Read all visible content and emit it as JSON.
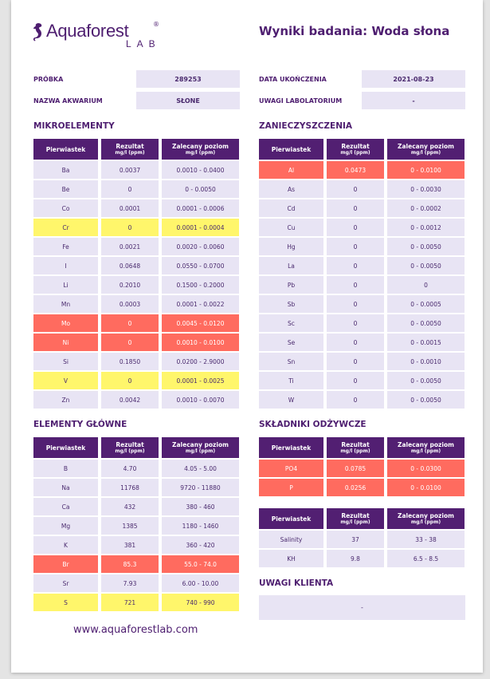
{
  "header": {
    "logo_text": "Aquaforest",
    "logo_sub": "LAB",
    "logo_reg": "®",
    "title": "Wyniki badania: Woda słona"
  },
  "info": {
    "sample_label": "PRÓBKA",
    "sample_value": "289253",
    "aquarium_label": "NAZWA AKWARIUM",
    "aquarium_value": "SŁONE",
    "date_label": "DATA UKOŃCZENIA",
    "date_value": "2021-08-23",
    "lab_notes_label": "UWAGI LABOLATORIUM",
    "lab_notes_value": "-"
  },
  "columns": {
    "element": "Pierwiastek",
    "result": "Rezultat",
    "recommended": "Zalecany poziom",
    "unit": "mg/l (ppm)"
  },
  "colors": {
    "header": "#521f72",
    "ok": "#e8e4f4",
    "warn": "#fff66b",
    "high": "#ff6b5f"
  },
  "tables": {
    "micro": {
      "title": "MIKROELEMENTY",
      "rows": [
        [
          "Ba",
          "0.0037",
          "0.0010 - 0.0400",
          "ok"
        ],
        [
          "Be",
          "0",
          "0 - 0.0050",
          "ok"
        ],
        [
          "Co",
          "0.0001",
          "0.0001 - 0.0006",
          "ok"
        ],
        [
          "Cr",
          "0",
          "0.0001 - 0.0004",
          "warn"
        ],
        [
          "Fe",
          "0.0021",
          "0.0020 - 0.0060",
          "ok"
        ],
        [
          "I",
          "0.0648",
          "0.0550 - 0.0700",
          "ok"
        ],
        [
          "Li",
          "0.2010",
          "0.1500 - 0.2000",
          "ok"
        ],
        [
          "Mn",
          "0.0003",
          "0.0001 - 0.0022",
          "ok"
        ],
        [
          "Mo",
          "0",
          "0.0045 - 0.0120",
          "high"
        ],
        [
          "Ni",
          "0",
          "0.0010 - 0.0100",
          "high"
        ],
        [
          "Si",
          "0.1850",
          "0.0200 - 2.9000",
          "ok"
        ],
        [
          "V",
          "0",
          "0.0001 - 0.0025",
          "warn"
        ],
        [
          "Zn",
          "0.0042",
          "0.0010 - 0.0070",
          "ok"
        ]
      ]
    },
    "pollutants": {
      "title": "ZANIECZYSZCZENIA",
      "rows": [
        [
          "Al",
          "0.0473",
          "0 - 0.0100",
          "high"
        ],
        [
          "As",
          "0",
          "0 - 0.0030",
          "ok"
        ],
        [
          "Cd",
          "0",
          "0 - 0.0002",
          "ok"
        ],
        [
          "Cu",
          "0",
          "0 - 0.0012",
          "ok"
        ],
        [
          "Hg",
          "0",
          "0 - 0.0050",
          "ok"
        ],
        [
          "La",
          "0",
          "0 - 0.0050",
          "ok"
        ],
        [
          "Pb",
          "0",
          "0",
          "ok"
        ],
        [
          "Sb",
          "0",
          "0 - 0.0005",
          "ok"
        ],
        [
          "Sc",
          "0",
          "0 - 0.0050",
          "ok"
        ],
        [
          "Se",
          "0",
          "0 - 0.0015",
          "ok"
        ],
        [
          "Sn",
          "0",
          "0 - 0.0010",
          "ok"
        ],
        [
          "Ti",
          "0",
          "0 - 0.0050",
          "ok"
        ],
        [
          "W",
          "0",
          "0 - 0.0050",
          "ok"
        ]
      ]
    },
    "main": {
      "title": "ELEMENTY GŁÓWNE",
      "rows": [
        [
          "B",
          "4.70",
          "4.05 - 5.00",
          "ok"
        ],
        [
          "Na",
          "11768",
          "9720 - 11880",
          "ok"
        ],
        [
          "Ca",
          "432",
          "380 - 460",
          "ok"
        ],
        [
          "Mg",
          "1385",
          "1180 - 1460",
          "ok"
        ],
        [
          "K",
          "381",
          "360 - 420",
          "ok"
        ],
        [
          "Br",
          "85.3",
          "55.0 - 74.0",
          "high"
        ],
        [
          "Sr",
          "7.93",
          "6.00 - 10.00",
          "ok"
        ],
        [
          "S",
          "721",
          "740 - 990",
          "warn"
        ]
      ]
    },
    "nutrients": {
      "title": "SKŁADNIKI ODŻYWCZE",
      "rows": [
        [
          "PO4",
          "0.0785",
          "0 - 0.0300",
          "high"
        ],
        [
          "P",
          "0.0256",
          "0 - 0.0100",
          "high"
        ]
      ]
    },
    "other": {
      "rows": [
        [
          "Salinity",
          "37",
          "33 - 38",
          "ok"
        ],
        [
          "KH",
          "9.8",
          "6.5 - 8.5",
          "ok"
        ]
      ]
    }
  },
  "client_notes": {
    "title": "UWAGI KLIENTA",
    "value": "-"
  },
  "footer": {
    "url": "www.aquaforestlab.com"
  }
}
